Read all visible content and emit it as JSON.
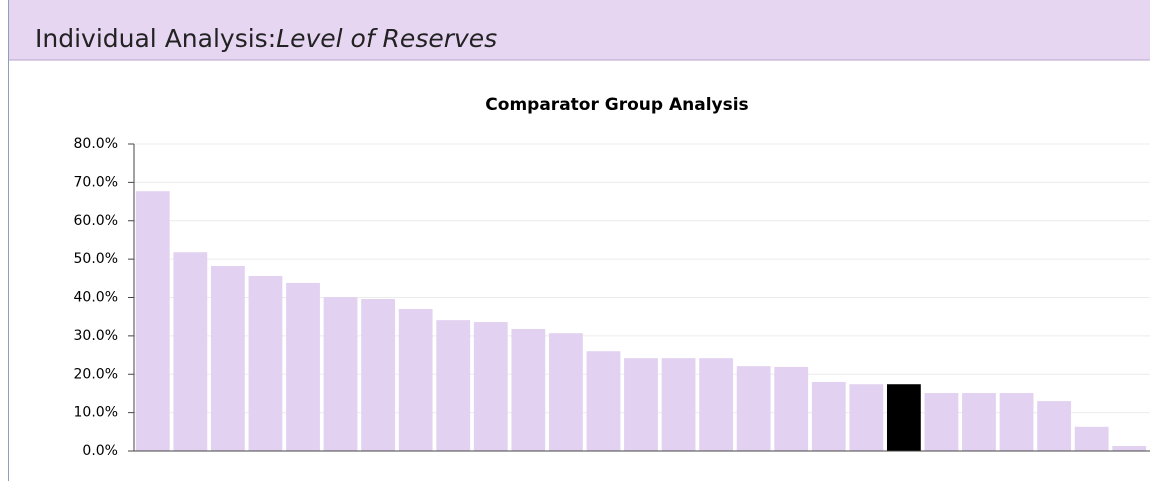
{
  "header": {
    "title": "Individual Analysis:",
    "subtitle": "Level of Reserves"
  },
  "chart_data": {
    "type": "bar",
    "title": "Comparator Group Analysis",
    "categories": [
      null,
      null,
      null,
      null,
      null,
      null,
      null,
      null,
      null,
      null,
      null,
      null,
      null,
      null,
      null,
      null,
      null,
      null,
      null,
      null,
      null,
      null,
      null,
      null,
      null,
      null,
      null
    ],
    "values": [
      67.7,
      51.8,
      48.2,
      45.6,
      43.8,
      40.1,
      39.6,
      37.0,
      34.1,
      33.6,
      31.8,
      30.7,
      26.0,
      24.2,
      24.2,
      24.2,
      22.1,
      21.9,
      18.0,
      17.4,
      17.4,
      15.1,
      15.1,
      15.1,
      13.0,
      6.3,
      1.3
    ],
    "colors": [
      "#e2d1f0",
      "#e2d1f0",
      "#e2d1f0",
      "#e2d1f0",
      "#e2d1f0",
      "#e2d1f0",
      "#e2d1f0",
      "#e2d1f0",
      "#e2d1f0",
      "#e2d1f0",
      "#e2d1f0",
      "#e2d1f0",
      "#e2d1f0",
      "#e2d1f0",
      "#e2d1f0",
      "#e2d1f0",
      "#e2d1f0",
      "#e2d1f0",
      "#e2d1f0",
      "#e2d1f0",
      "#000000",
      "#e2d1f0",
      "#e2d1f0",
      "#e2d1f0",
      "#e2d1f0",
      "#e2d1f0",
      "#e2d1f0"
    ],
    "ylim": [
      0,
      80
    ],
    "yticks": [
      {
        "value": 0,
        "label": "0.0%"
      },
      {
        "value": 10,
        "label": "10.0%"
      },
      {
        "value": 20,
        "label": "20.0%"
      },
      {
        "value": 30,
        "label": "30.0%"
      },
      {
        "value": 40,
        "label": "40.0%"
      },
      {
        "value": 50,
        "label": "50.0%"
      },
      {
        "value": 60,
        "label": "60.0%"
      },
      {
        "value": 70,
        "label": "70.0%"
      },
      {
        "value": 80,
        "label": "80.0%"
      }
    ],
    "grid": true
  }
}
